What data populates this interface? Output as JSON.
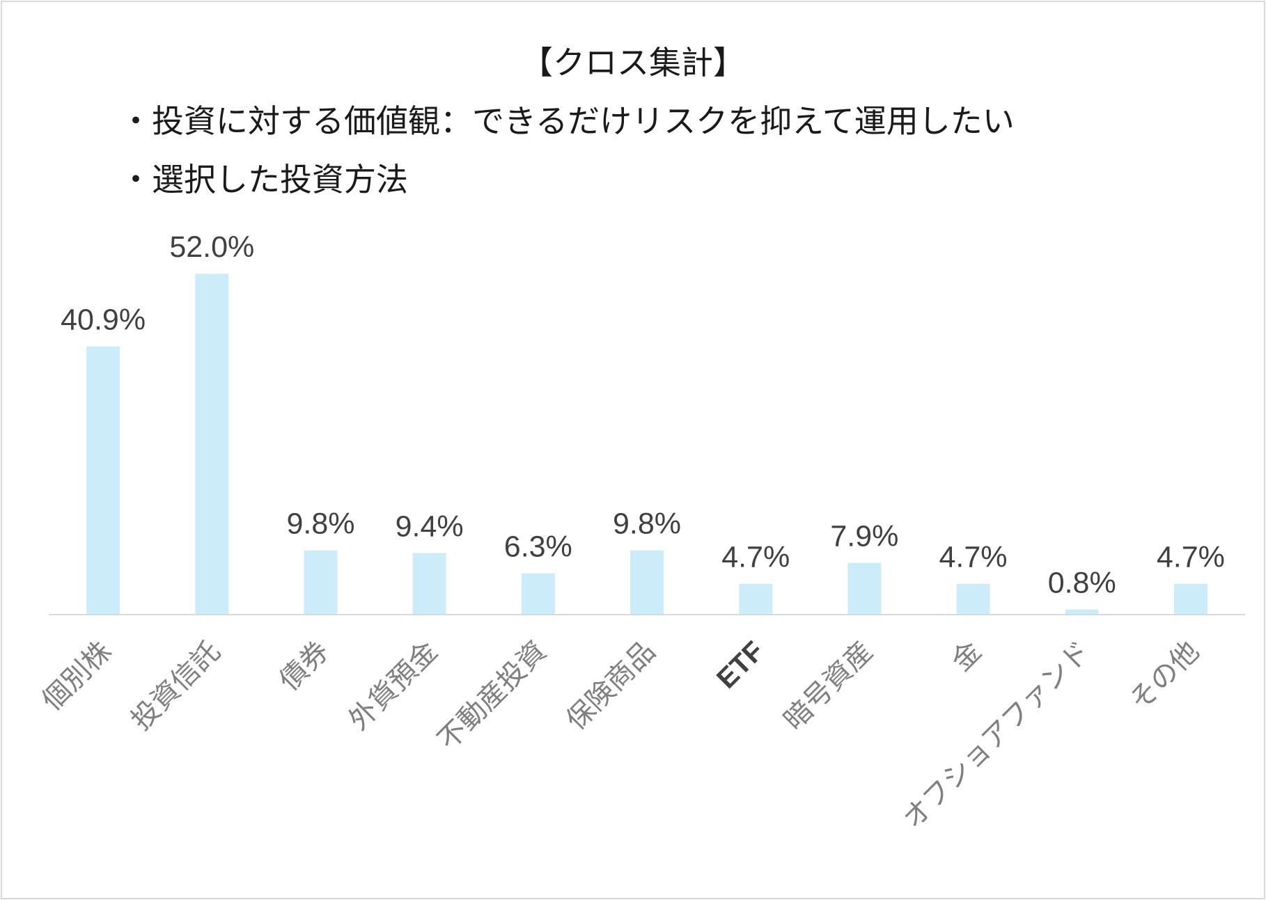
{
  "chart_data": {
    "type": "bar",
    "title": "【クロス集計】",
    "subtitle_lines": [
      "・投資に対する価値観：できるだけリスクを抑えて運用したい",
      "・選択した投資方法"
    ],
    "categories": [
      "個別株",
      "投資信託",
      "債券",
      "外貨預金",
      "不動産投資",
      "保険商品",
      "ETF",
      "暗号資産",
      "金",
      "オフショアファンド",
      "その他"
    ],
    "values": [
      40.9,
      52.0,
      9.8,
      9.4,
      6.3,
      9.8,
      4.7,
      7.9,
      4.7,
      0.8,
      4.7
    ],
    "value_labels": [
      "40.9%",
      "52.0%",
      "9.8%",
      "9.4%",
      "6.3%",
      "9.8%",
      "4.7%",
      "7.9%",
      "4.7%",
      "0.8%",
      "4.7%"
    ],
    "unit": "%",
    "ylim": [
      0,
      60
    ],
    "grid": false,
    "legend": "none",
    "bar_color": "#cdecfa",
    "axis_color": "#d9d9d9"
  }
}
